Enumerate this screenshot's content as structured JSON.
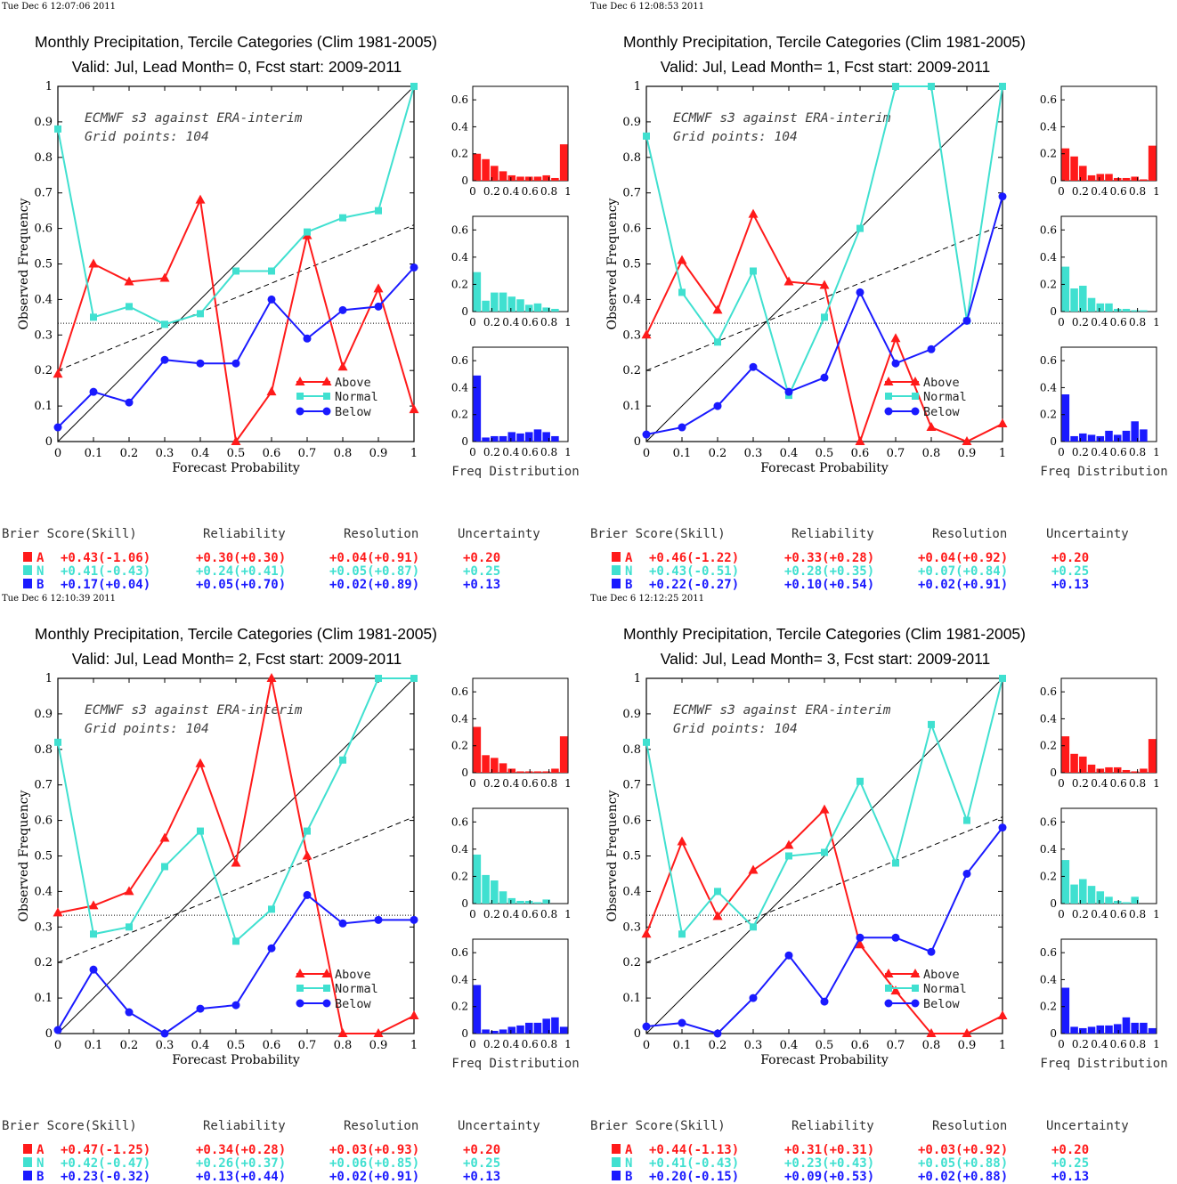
{
  "colors": {
    "above": "#ff1a1a",
    "normal": "#40e0d0",
    "below": "#1a1aff"
  },
  "panels": [
    {
      "timestamp": "Tue Dec  6 12:07:06 2011",
      "title_line1": "Monthly Precipitation, Tercile Categories (Clim 1981-2005)",
      "title_line2": "Valid: Jul, Lead Month= 0, Fcst start: 2009-2011",
      "annotation1": "ECMWF s3 against ERA-interim",
      "annotation2": "Grid points:  104",
      "xlabel": "Forecast Probability",
      "ylabel": "Observed Frequency",
      "hist_label": "Freq Distribution",
      "legend": [
        "Above",
        "Normal",
        "Below"
      ],
      "scores_header": [
        "Brier Score(Skill)",
        "Reliability",
        "Resolution",
        "Uncertainty"
      ],
      "scores": [
        {
          "cat": "A",
          "brier": "+0.43(-1.06)",
          "rel": "+0.30(+0.30)",
          "res": "+0.04(+0.91)",
          "unc": "+0.20"
        },
        {
          "cat": "N",
          "brier": "+0.41(-0.43)",
          "rel": "+0.24(+0.41)",
          "res": "+0.05(+0.87)",
          "unc": "+0.25"
        },
        {
          "cat": "B",
          "brier": "+0.17(+0.04)",
          "rel": "+0.05(+0.70)",
          "res": "+0.02(+0.89)",
          "unc": "+0.13"
        }
      ]
    },
    {
      "timestamp": "Tue Dec  6 12:08:53 2011",
      "title_line1": "Monthly Precipitation, Tercile Categories (Clim 1981-2005)",
      "title_line2": "Valid: Jul, Lead Month= 1, Fcst start: 2009-2011",
      "annotation1": "ECMWF s3 against ERA-interim",
      "annotation2": "Grid points:  104",
      "xlabel": "Forecast Probability",
      "ylabel": "Observed Frequency",
      "hist_label": "Freq Distribution",
      "legend": [
        "Above",
        "Normal",
        "Below"
      ],
      "scores_header": [
        "Brier Score(Skill)",
        "Reliability",
        "Resolution",
        "Uncertainty"
      ],
      "scores": [
        {
          "cat": "A",
          "brier": "+0.46(-1.22)",
          "rel": "+0.33(+0.28)",
          "res": "+0.04(+0.92)",
          "unc": "+0.20"
        },
        {
          "cat": "N",
          "brier": "+0.43(-0.51)",
          "rel": "+0.28(+0.35)",
          "res": "+0.07(+0.84)",
          "unc": "+0.25"
        },
        {
          "cat": "B",
          "brier": "+0.22(-0.27)",
          "rel": "+0.10(+0.54)",
          "res": "+0.02(+0.91)",
          "unc": "+0.13"
        }
      ]
    },
    {
      "timestamp": "Tue Dec  6 12:10:39 2011",
      "title_line1": "Monthly Precipitation, Tercile Categories (Clim 1981-2005)",
      "title_line2": "Valid: Jul, Lead Month= 2, Fcst start: 2009-2011",
      "annotation1": "ECMWF s3 against ERA-interim",
      "annotation2": "Grid points:  104",
      "xlabel": "Forecast Probability",
      "ylabel": "Observed Frequency",
      "hist_label": "Freq Distribution",
      "legend": [
        "Above",
        "Normal",
        "Below"
      ],
      "scores_header": [
        "Brier Score(Skill)",
        "Reliability",
        "Resolution",
        "Uncertainty"
      ],
      "scores": [
        {
          "cat": "A",
          "brier": "+0.47(-1.25)",
          "rel": "+0.34(+0.28)",
          "res": "+0.03(+0.93)",
          "unc": "+0.20"
        },
        {
          "cat": "N",
          "brier": "+0.42(-0.47)",
          "rel": "+0.26(+0.37)",
          "res": "+0.06(+0.85)",
          "unc": "+0.25"
        },
        {
          "cat": "B",
          "brier": "+0.23(-0.32)",
          "rel": "+0.13(+0.44)",
          "res": "+0.02(+0.91)",
          "unc": "+0.13"
        }
      ]
    },
    {
      "timestamp": "Tue Dec  6 12:12:25 2011",
      "title_line1": "Monthly Precipitation, Tercile Categories (Clim 1981-2005)",
      "title_line2": "Valid: Jul, Lead Month= 3, Fcst start: 2009-2011",
      "annotation1": "ECMWF s3 against ERA-interim",
      "annotation2": "Grid points:  104",
      "xlabel": "Forecast Probability",
      "ylabel": "Observed Frequency",
      "hist_label": "Freq Distribution",
      "legend": [
        "Above",
        "Normal",
        "Below"
      ],
      "scores_header": [
        "Brier Score(Skill)",
        "Reliability",
        "Resolution",
        "Uncertainty"
      ],
      "scores": [
        {
          "cat": "A",
          "brier": "+0.44(-1.13)",
          "rel": "+0.31(+0.31)",
          "res": "+0.03(+0.92)",
          "unc": "+0.20"
        },
        {
          "cat": "N",
          "brier": "+0.41(-0.43)",
          "rel": "+0.23(+0.43)",
          "res": "+0.05(+0.88)",
          "unc": "+0.25"
        },
        {
          "cat": "B",
          "brier": "+0.20(-0.15)",
          "rel": "+0.09(+0.53)",
          "res": "+0.02(+0.88)",
          "unc": "+0.13"
        }
      ]
    }
  ],
  "chart_data": [
    {
      "type": "line",
      "x": [
        0,
        0.1,
        0.2,
        0.3,
        0.4,
        0.5,
        0.6,
        0.7,
        0.8,
        0.9,
        1
      ],
      "xlim": [
        0,
        1
      ],
      "ylim": [
        0,
        1
      ],
      "xlabel": "Forecast Probability",
      "ylabel": "Observed Frequency",
      "reference_lines": {
        "perfect": [
          [
            0,
            0
          ],
          [
            1,
            1
          ]
        ],
        "no_skill": [
          [
            0,
            0.2
          ],
          [
            1,
            0.61
          ]
        ],
        "climatology": 0.333
      },
      "series": [
        {
          "name": "Above",
          "values": [
            0.19,
            0.5,
            0.45,
            0.46,
            0.68,
            0.0,
            0.14,
            0.58,
            0.21,
            0.43,
            0.09
          ]
        },
        {
          "name": "Normal",
          "values": [
            0.88,
            0.35,
            0.38,
            0.33,
            0.36,
            0.48,
            0.48,
            0.59,
            0.63,
            0.65,
            1.0
          ]
        },
        {
          "name": "Below",
          "values": [
            0.04,
            0.14,
            0.11,
            0.23,
            0.22,
            0.22,
            0.4,
            0.29,
            0.37,
            0.38,
            0.49
          ]
        }
      ],
      "freq_distribution": {
        "bins": [
          0,
          0.1,
          0.2,
          0.3,
          0.4,
          0.5,
          0.6,
          0.7,
          0.8,
          0.9,
          1
        ],
        "ylim": [
          0,
          0.7
        ],
        "Above": [
          0.2,
          0.16,
          0.11,
          0.07,
          0.04,
          0.03,
          0.03,
          0.03,
          0.04,
          0.02,
          0.27
        ],
        "Normal": [
          0.29,
          0.08,
          0.14,
          0.14,
          0.11,
          0.09,
          0.05,
          0.06,
          0.03,
          0.02,
          0.0
        ],
        "Below": [
          0.49,
          0.03,
          0.04,
          0.04,
          0.07,
          0.06,
          0.07,
          0.09,
          0.07,
          0.04,
          0.0
        ]
      }
    },
    {
      "type": "line",
      "x": [
        0,
        0.1,
        0.2,
        0.3,
        0.4,
        0.5,
        0.6,
        0.7,
        0.8,
        0.9,
        1
      ],
      "xlim": [
        0,
        1
      ],
      "ylim": [
        0,
        1
      ],
      "xlabel": "Forecast Probability",
      "ylabel": "Observed Frequency",
      "reference_lines": {
        "perfect": [
          [
            0,
            0
          ],
          [
            1,
            1
          ]
        ],
        "no_skill": [
          [
            0,
            0.2
          ],
          [
            1,
            0.61
          ]
        ],
        "climatology": 0.333
      },
      "series": [
        {
          "name": "Above",
          "values": [
            0.3,
            0.51,
            0.37,
            0.64,
            0.45,
            0.44,
            0.0,
            0.29,
            0.04,
            0.0,
            0.05
          ]
        },
        {
          "name": "Normal",
          "values": [
            0.86,
            0.42,
            0.28,
            0.48,
            0.13,
            0.35,
            0.6,
            1.0,
            1.0,
            0.34,
            1.0
          ]
        },
        {
          "name": "Below",
          "values": [
            0.02,
            0.04,
            0.1,
            0.21,
            0.14,
            0.18,
            0.42,
            0.22,
            0.26,
            0.34,
            0.69
          ]
        }
      ],
      "freq_distribution": {
        "bins": [
          0,
          0.1,
          0.2,
          0.3,
          0.4,
          0.5,
          0.6,
          0.7,
          0.8,
          0.9,
          1
        ],
        "ylim": [
          0,
          0.7
        ],
        "Above": [
          0.24,
          0.18,
          0.11,
          0.04,
          0.05,
          0.05,
          0.02,
          0.02,
          0.03,
          0.01,
          0.26
        ],
        "Normal": [
          0.33,
          0.17,
          0.19,
          0.1,
          0.06,
          0.06,
          0.02,
          0.02,
          0.01,
          0.01,
          0.0
        ],
        "Below": [
          0.35,
          0.04,
          0.06,
          0.05,
          0.04,
          0.08,
          0.05,
          0.08,
          0.15,
          0.09,
          0.0
        ]
      }
    },
    {
      "type": "line",
      "x": [
        0,
        0.1,
        0.2,
        0.3,
        0.4,
        0.5,
        0.6,
        0.7,
        0.8,
        0.9,
        1
      ],
      "xlim": [
        0,
        1
      ],
      "ylim": [
        0,
        1
      ],
      "xlabel": "Forecast Probability",
      "ylabel": "Observed Frequency",
      "reference_lines": {
        "perfect": [
          [
            0,
            0
          ],
          [
            1,
            1
          ]
        ],
        "no_skill": [
          [
            0,
            0.2
          ],
          [
            1,
            0.61
          ]
        ],
        "climatology": 0.333
      },
      "series": [
        {
          "name": "Above",
          "values": [
            0.34,
            0.36,
            0.4,
            0.55,
            0.76,
            0.48,
            1.0,
            0.5,
            0.0,
            0.0,
            0.05
          ]
        },
        {
          "name": "Normal",
          "values": [
            0.82,
            0.28,
            0.3,
            0.47,
            0.57,
            0.26,
            0.35,
            0.57,
            0.77,
            1.0,
            1.0
          ]
        },
        {
          "name": "Below",
          "values": [
            0.01,
            0.18,
            0.06,
            0.0,
            0.07,
            0.08,
            0.24,
            0.39,
            0.31,
            0.32,
            0.32
          ]
        }
      ],
      "freq_distribution": {
        "bins": [
          0,
          0.1,
          0.2,
          0.3,
          0.4,
          0.5,
          0.6,
          0.7,
          0.8,
          0.9,
          1
        ],
        "ylim": [
          0,
          0.7
        ],
        "Above": [
          0.34,
          0.13,
          0.11,
          0.07,
          0.03,
          0.01,
          0.01,
          0.01,
          0.01,
          0.03,
          0.27
        ],
        "Normal": [
          0.36,
          0.21,
          0.17,
          0.09,
          0.04,
          0.02,
          0.02,
          0.01,
          0.03,
          0.0,
          0.0
        ],
        "Below": [
          0.36,
          0.03,
          0.02,
          0.03,
          0.05,
          0.06,
          0.08,
          0.08,
          0.11,
          0.12,
          0.05
        ]
      }
    },
    {
      "type": "line",
      "x": [
        0,
        0.1,
        0.2,
        0.3,
        0.4,
        0.5,
        0.6,
        0.7,
        0.8,
        0.9,
        1
      ],
      "xlim": [
        0,
        1
      ],
      "ylim": [
        0,
        1
      ],
      "xlabel": "Forecast Probability",
      "ylabel": "Observed Frequency",
      "reference_lines": {
        "perfect": [
          [
            0,
            0
          ],
          [
            1,
            1
          ]
        ],
        "no_skill": [
          [
            0,
            0.2
          ],
          [
            1,
            0.61
          ]
        ],
        "climatology": 0.333
      },
      "series": [
        {
          "name": "Above",
          "values": [
            0.28,
            0.54,
            0.33,
            0.46,
            0.53,
            0.63,
            0.25,
            0.12,
            0.0,
            0.0,
            0.05
          ]
        },
        {
          "name": "Normal",
          "values": [
            0.82,
            0.28,
            0.4,
            0.3,
            0.5,
            0.51,
            0.71,
            0.48,
            0.87,
            0.6,
            1.0
          ]
        },
        {
          "name": "Below",
          "values": [
            0.02,
            0.03,
            0.0,
            0.1,
            0.22,
            0.09,
            0.27,
            0.27,
            0.23,
            0.45,
            0.58
          ]
        }
      ],
      "freq_distribution": {
        "bins": [
          0,
          0.1,
          0.2,
          0.3,
          0.4,
          0.5,
          0.6,
          0.7,
          0.8,
          0.9,
          1
        ],
        "ylim": [
          0,
          0.7
        ],
        "Above": [
          0.27,
          0.14,
          0.12,
          0.06,
          0.03,
          0.04,
          0.04,
          0.02,
          0.01,
          0.03,
          0.25
        ],
        "Normal": [
          0.32,
          0.14,
          0.18,
          0.13,
          0.09,
          0.05,
          0.02,
          0.01,
          0.05,
          0.0,
          0.0
        ],
        "Below": [
          0.34,
          0.05,
          0.04,
          0.05,
          0.06,
          0.06,
          0.07,
          0.12,
          0.08,
          0.08,
          0.04
        ]
      }
    }
  ]
}
